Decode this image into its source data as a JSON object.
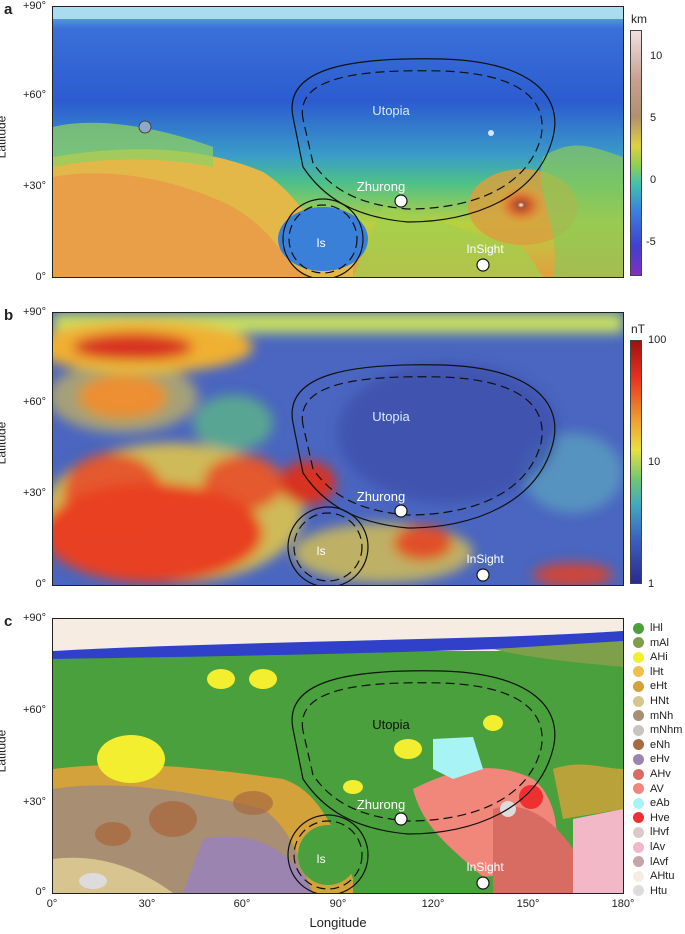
{
  "panels": [
    {
      "letter": "a",
      "ylabel": "Latitude",
      "yticks": [
        "+90°",
        "+60°",
        "+30°",
        "0°"
      ],
      "colorbar": {
        "unit": "km",
        "ticks": [
          "10",
          "5",
          "0",
          "-5"
        ],
        "scale": "linear",
        "range": [
          -8,
          12
        ]
      }
    },
    {
      "letter": "b",
      "ylabel": "Latitude",
      "yticks": [
        "+90°",
        "+60°",
        "+30°",
        "0°"
      ],
      "colorbar": {
        "unit": "nT",
        "ticks": [
          "100",
          "10",
          "1"
        ],
        "scale": "log",
        "range": [
          1,
          100
        ]
      }
    },
    {
      "letter": "c",
      "ylabel": "Latitude",
      "yticks": [
        "+90°",
        "+60°",
        "+30°",
        "0°"
      ],
      "xlabel": "Longitude",
      "xticks": [
        "0°",
        "30°",
        "60°",
        "90°",
        "120°",
        "150°",
        "180°"
      ]
    }
  ],
  "features": {
    "utopia": "Utopia",
    "isidis": "Is",
    "zhurong": "Zhurong",
    "insight": "InSight"
  },
  "landing_sites": [
    {
      "name": "Zhurong",
      "lon": 110,
      "lat": 25
    },
    {
      "name": "InSight",
      "lon": 135.6,
      "lat": 4.5
    }
  ],
  "legend": [
    {
      "label": "lHl",
      "color": "#4aa03c"
    },
    {
      "label": "mAl",
      "color": "#7ea04a"
    },
    {
      "label": "AHi",
      "color": "#f4ee30"
    },
    {
      "label": "lHt",
      "color": "#f2be4e"
    },
    {
      "label": "eHt",
      "color": "#d4a23a"
    },
    {
      "label": "HNt",
      "color": "#d8c48e"
    },
    {
      "label": "mNh",
      "color": "#a88e72"
    },
    {
      "label": "mNhm",
      "color": "#c8c4c2"
    },
    {
      "label": "eNh",
      "color": "#a86a40"
    },
    {
      "label": "eHv",
      "color": "#9c84b0"
    },
    {
      "label": "AHv",
      "color": "#d86c62"
    },
    {
      "label": "AV",
      "color": "#f0877a"
    },
    {
      "label": "eAb",
      "color": "#a8f4f4"
    },
    {
      "label": "Hve",
      "color": "#ee3030"
    },
    {
      "label": "lHvf",
      "color": "#dcc8c8"
    },
    {
      "label": "lAv",
      "color": "#f2b8c8"
    },
    {
      "label": "lAvf",
      "color": "#c8a4a8"
    },
    {
      "label": "AHtu",
      "color": "#f6ece2"
    },
    {
      "label": "Htu",
      "color": "#dcdcdc"
    }
  ]
}
